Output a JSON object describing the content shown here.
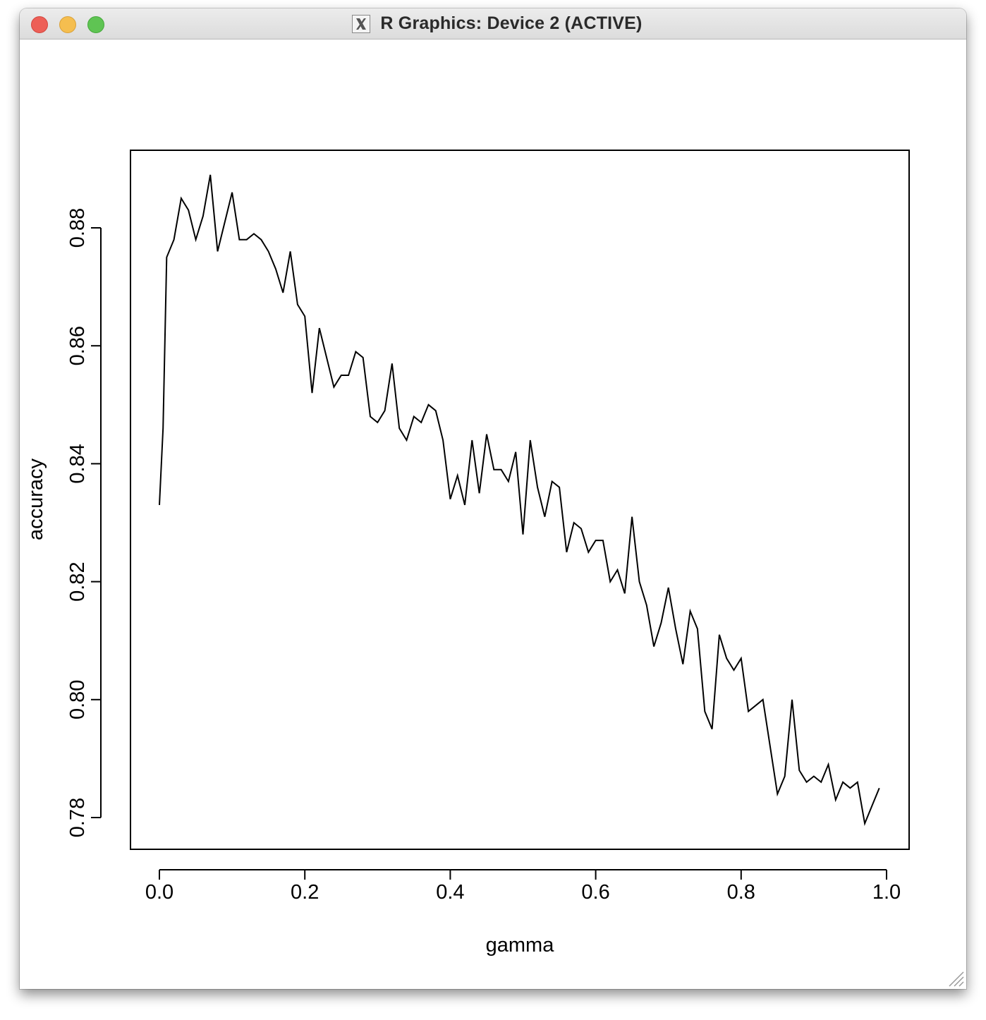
{
  "window": {
    "title": "R Graphics: Device 2 (ACTIVE)",
    "controls": {
      "close_color": "#ed5f57",
      "minimize_color": "#f5be4f",
      "maximize_color": "#5fc453"
    },
    "title_icon": "x11-icon"
  },
  "chart_data": {
    "type": "line",
    "title": "",
    "xlabel": "gamma",
    "ylabel": "accuracy",
    "xlim": [
      0.0,
      1.0
    ],
    "ylim": [
      0.78,
      0.88
    ],
    "x_ticks": [
      "0.0",
      "0.2",
      "0.4",
      "0.6",
      "0.8",
      "1.0"
    ],
    "x_tick_values": [
      0.0,
      0.2,
      0.4,
      0.6,
      0.8,
      1.0
    ],
    "y_ticks": [
      "0.78",
      "0.80",
      "0.82",
      "0.84",
      "0.86",
      "0.88"
    ],
    "y_tick_values": [
      0.78,
      0.8,
      0.82,
      0.84,
      0.86,
      0.88
    ],
    "grid": false,
    "line_color": "#000000",
    "series": [
      {
        "x": [
          0.0,
          0.005,
          0.01,
          0.02,
          0.03,
          0.04,
          0.05,
          0.06,
          0.07,
          0.08,
          0.09,
          0.1,
          0.11,
          0.12,
          0.13,
          0.14,
          0.15,
          0.16,
          0.17,
          0.18,
          0.19,
          0.2,
          0.21,
          0.22,
          0.23,
          0.24,
          0.25,
          0.26,
          0.27,
          0.28,
          0.29,
          0.3,
          0.31,
          0.32,
          0.33,
          0.34,
          0.35,
          0.36,
          0.37,
          0.38,
          0.39,
          0.4,
          0.41,
          0.42,
          0.43,
          0.44,
          0.45,
          0.46,
          0.47,
          0.48,
          0.49,
          0.5,
          0.51,
          0.52,
          0.53,
          0.54,
          0.55,
          0.56,
          0.57,
          0.58,
          0.59,
          0.6,
          0.61,
          0.62,
          0.63,
          0.64,
          0.65,
          0.66,
          0.67,
          0.68,
          0.69,
          0.7,
          0.71,
          0.72,
          0.73,
          0.74,
          0.75,
          0.76,
          0.77,
          0.78,
          0.79,
          0.8,
          0.81,
          0.82,
          0.83,
          0.84,
          0.85,
          0.86,
          0.87,
          0.88,
          0.89,
          0.9,
          0.91,
          0.92,
          0.93,
          0.94,
          0.95,
          0.96,
          0.97,
          0.98,
          0.99
        ],
        "y": [
          0.833,
          0.846,
          0.875,
          0.878,
          0.885,
          0.883,
          0.878,
          0.882,
          0.889,
          0.876,
          0.881,
          0.886,
          0.878,
          0.878,
          0.879,
          0.878,
          0.876,
          0.873,
          0.869,
          0.876,
          0.867,
          0.865,
          0.852,
          0.863,
          0.858,
          0.853,
          0.855,
          0.855,
          0.859,
          0.858,
          0.848,
          0.847,
          0.849,
          0.857,
          0.846,
          0.844,
          0.848,
          0.847,
          0.85,
          0.849,
          0.844,
          0.834,
          0.838,
          0.833,
          0.844,
          0.835,
          0.845,
          0.839,
          0.839,
          0.837,
          0.842,
          0.828,
          0.844,
          0.836,
          0.831,
          0.837,
          0.836,
          0.825,
          0.83,
          0.829,
          0.825,
          0.827,
          0.827,
          0.82,
          0.822,
          0.818,
          0.831,
          0.82,
          0.816,
          0.809,
          0.813,
          0.819,
          0.812,
          0.806,
          0.815,
          0.812,
          0.798,
          0.795,
          0.811,
          0.807,
          0.805,
          0.807,
          0.798,
          0.799,
          0.8,
          0.792,
          0.784,
          0.787,
          0.8,
          0.788,
          0.786,
          0.787,
          0.786,
          0.789,
          0.783,
          0.786,
          0.785,
          0.786,
          0.779,
          0.782,
          0.785
        ]
      }
    ]
  }
}
